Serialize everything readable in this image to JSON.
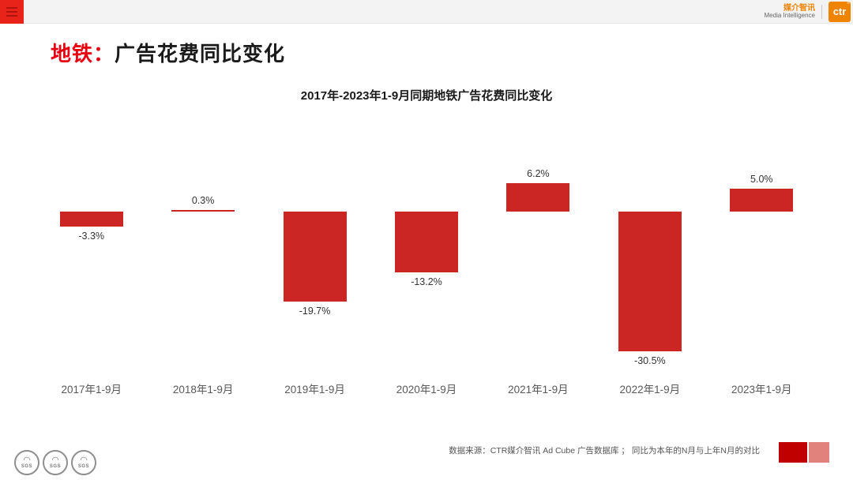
{
  "topbar": {
    "brand_cn": "媒介智讯",
    "brand_en": "Media Intelligence",
    "logo_text": "ctr",
    "logo_reg": "®"
  },
  "title": {
    "prefix": "地铁：",
    "rest": "广告花费同比变化"
  },
  "chart_data": {
    "type": "bar",
    "title": "2017年-2023年1-9月同期地铁广告花费同比变化",
    "categories": [
      "2017年1-9月",
      "2018年1-9月",
      "2019年1-9月",
      "2020年1-9月",
      "2021年1-9月",
      "2022年1-9月",
      "2023年1-9月"
    ],
    "values": [
      -3.3,
      0.3,
      -19.7,
      -13.2,
      6.2,
      -30.5,
      5.0
    ],
    "labels": [
      "-3.3%",
      "0.3%",
      "-19.7%",
      "-13.2%",
      "6.2%",
      "-30.5%",
      "5.0%"
    ],
    "unit": "%",
    "ylim": [
      -35,
      10
    ],
    "grid": false,
    "legend": "none",
    "bar_color": "#cc2624"
  },
  "footer": {
    "source": "数据来源：CTR媒介智讯 Ad Cube 广告数据库 ；  同比为本年的N月与上年N月的对比"
  },
  "badges": {
    "label": "SGS",
    "swirl": "◠"
  },
  "colors": {
    "bar": "#cc2624",
    "title_accent": "#e60012",
    "logo_orange": "#f08300",
    "legend_dark": "#c00000",
    "legend_light": "#e2827d",
    "topbar_bg": "#f3f3f3",
    "menu_red": "#e8231a"
  }
}
